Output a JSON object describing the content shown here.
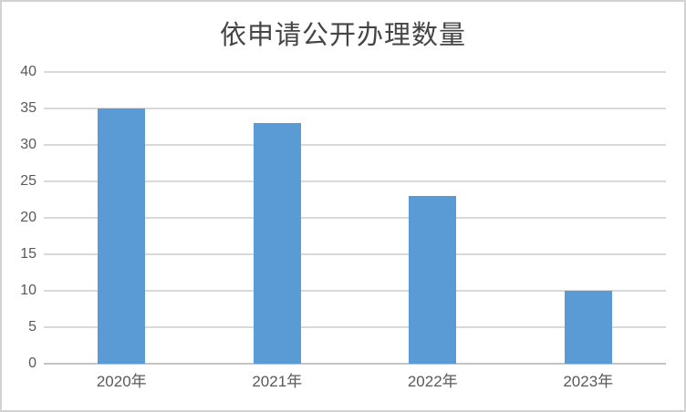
{
  "chart_data": {
    "type": "bar",
    "title": "依申请公开办理数量",
    "categories": [
      "2020年",
      "2021年",
      "2022年",
      "2023年"
    ],
    "values": [
      35,
      33,
      23,
      10
    ],
    "ylim": [
      0,
      40
    ],
    "ytick_step": 5,
    "ytick_labels": [
      "0",
      "5",
      "10",
      "15",
      "20",
      "25",
      "30",
      "35",
      "40"
    ],
    "xlabel": "",
    "ylabel": "",
    "grid": "horizontal",
    "legend": "none",
    "colors": {
      "bar": "#5b9bd5",
      "gridline": "#d9d9d9",
      "axis_line": "#c3c3c3",
      "tick_text": "#595959",
      "title_text": "#454545",
      "frame_border": "#d2d2d2",
      "background": "#ffffff"
    }
  }
}
